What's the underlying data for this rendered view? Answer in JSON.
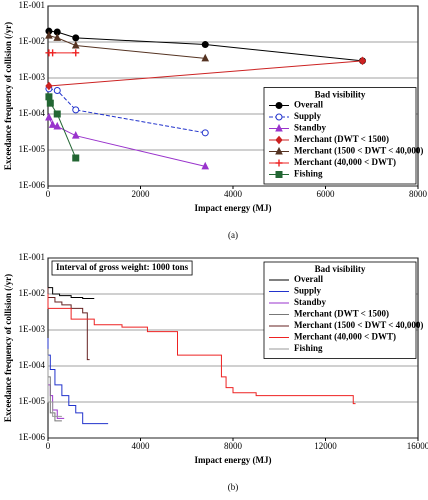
{
  "chart_data": [
    {
      "type": "line",
      "caption": "(a)",
      "xlabel": "Impact energy (MJ)",
      "ylabel": "Exceedance frequency of collision (/yr)",
      "legend_title": "Bad visibility",
      "legend": "lower right",
      "log_y": true,
      "grid": true,
      "xlim": [
        0,
        8000
      ],
      "xticks": [
        0,
        2000,
        4000,
        6000,
        8000
      ],
      "ylim": [
        1e-06,
        0.1
      ],
      "yticks": [
        {
          "value": 1e-06,
          "label": "1E-006"
        },
        {
          "value": 1e-05,
          "label": "1E-005"
        },
        {
          "value": 0.0001,
          "label": "1E-004"
        },
        {
          "value": 0.001,
          "label": "1E-003"
        },
        {
          "value": 0.01,
          "label": "1E-002"
        },
        {
          "value": 0.1,
          "label": "1E-001"
        }
      ],
      "series": [
        {
          "name": "Overall",
          "color": "#000000",
          "marker": "circle",
          "line_style": "solid",
          "x": [
            20,
            200,
            600,
            3400,
            6800
          ],
          "values": [
            0.02,
            0.019,
            0.013,
            0.0085,
            0.003
          ]
        },
        {
          "name": "Supply",
          "color": "#2233cc",
          "marker": "open-circle",
          "line_style": "dashed",
          "x": [
            20,
            200,
            600,
            3400
          ],
          "values": [
            0.0005,
            0.00045,
            0.00013,
            3e-05
          ]
        },
        {
          "name": "Standby",
          "color": "#9933cc",
          "marker": "triangle",
          "line_style": "solid",
          "x": [
            20,
            100,
            200,
            600,
            3400
          ],
          "values": [
            8e-05,
            5e-05,
            4.5e-05,
            2.5e-05,
            3.5e-06
          ]
        },
        {
          "name": "Merchant (DWT < 1500)",
          "color": "#cc2222",
          "marker": "diamond",
          "line_style": "solid",
          "x": [
            20,
            6800
          ],
          "values": [
            0.0006,
            0.003
          ]
        },
        {
          "name": "Merchant (1500 < DWT < 40,000)",
          "color": "#553322",
          "marker": "triangle",
          "line_style": "solid",
          "x": [
            20,
            200,
            600,
            3400
          ],
          "values": [
            0.015,
            0.013,
            0.008,
            0.0035
          ]
        },
        {
          "name": "Merchant (40,000 < DWT)",
          "color": "#ee2222",
          "marker": "plus",
          "line_style": "solid",
          "x": [
            20,
            100,
            600
          ],
          "values": [
            0.005,
            0.005,
            0.005
          ]
        },
        {
          "name": "Fishing",
          "color": "#226633",
          "marker": "square",
          "line_style": "solid",
          "x": [
            20,
            50,
            200,
            600
          ],
          "values": [
            0.0003,
            0.0002,
            0.0001,
            6e-06
          ]
        }
      ]
    },
    {
      "type": "step",
      "caption": "(b)",
      "xlabel": "Impact energy (MJ)",
      "ylabel": "Exceedance frequency of collision (/yr)",
      "annotation": "Interval of gross weight: 1000 tons",
      "legend_title": "Bad visibility",
      "legend": "upper right",
      "log_y": true,
      "grid": true,
      "xlim": [
        0,
        16000
      ],
      "xticks": [
        0,
        4000,
        8000,
        12000,
        16000
      ],
      "ylim": [
        1e-06,
        0.1
      ],
      "yticks": [
        {
          "value": 1e-06,
          "label": "1E-006"
        },
        {
          "value": 1e-05,
          "label": "1E-005"
        },
        {
          "value": 0.0001,
          "label": "1E-004"
        },
        {
          "value": 0.001,
          "label": "1E-003"
        },
        {
          "value": 0.01,
          "label": "1E-002"
        },
        {
          "value": 0.1,
          "label": "1E-001"
        }
      ],
      "series": [
        {
          "name": "Overall",
          "color": "#000000",
          "x": [
            0,
            200,
            500,
            1000,
            1500,
            2000
          ],
          "values": [
            0.025,
            0.015,
            0.01,
            0.009,
            0.008,
            0.0075
          ]
        },
        {
          "name": "Supply",
          "color": "#2233cc",
          "x": [
            0,
            100,
            300,
            600,
            900,
            1200,
            1500,
            1800,
            2600
          ],
          "values": [
            0.0006,
            0.0002,
            8e-05,
            3e-05,
            1.5e-05,
            8e-06,
            5e-06,
            2.5e-06,
            2.5e-06
          ]
        },
        {
          "name": "Standby",
          "color": "#9933cc",
          "x": [
            0,
            100,
            200,
            400,
            600,
            700
          ],
          "values": [
            0.0001,
            3e-05,
            1.5e-05,
            6e-06,
            3.5e-06,
            3.5e-06
          ]
        },
        {
          "name": "Merchant (DWT < 1500)",
          "color": "#777777",
          "x": [
            0,
            100,
            300,
            600
          ],
          "values": [
            0.0003,
            5e-05,
            5e-06,
            3e-06
          ]
        },
        {
          "name": "Merchant (1500 < DWT < 40,000)",
          "color": "#662222",
          "x": [
            0,
            300,
            600,
            1000,
            1500,
            1700,
            1800
          ],
          "values": [
            0.015,
            0.008,
            0.006,
            0.005,
            0.004,
            0.003,
            0.00015
          ]
        },
        {
          "name": "Merchant (40,000 < DWT)",
          "color": "#ee2222",
          "x": [
            0,
            1000,
            2000,
            3200,
            4300,
            5600,
            7500,
            7700,
            8000,
            9000,
            13200,
            13300
          ],
          "values": [
            0.01,
            0.004,
            0.002,
            0.0014,
            0.0012,
            0.0009,
            0.0002,
            5e-05,
            2.5e-05,
            1.8e-05,
            1.5e-05,
            9e-06
          ]
        },
        {
          "name": "Fishing",
          "color": "#999999",
          "x": [
            0,
            200,
            600
          ],
          "values": [
            0.0002,
            1e-05,
            4e-06
          ]
        }
      ]
    }
  ]
}
